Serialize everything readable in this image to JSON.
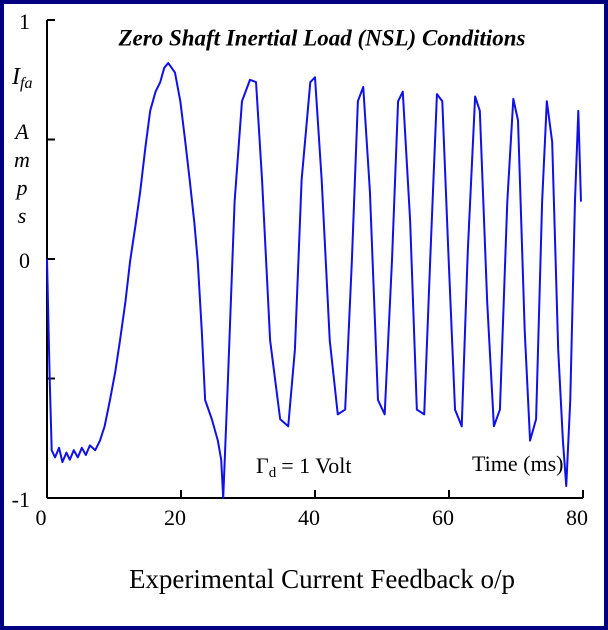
{
  "chart_data": {
    "type": "line",
    "title": "Zero Shaft Inertial Load (NSL) Conditions",
    "y_label": {
      "symbol": "I",
      "subscript": "fa",
      "unit": "Amps"
    },
    "x_label": "Time (ms)",
    "annotation": {
      "symbol": "Γ",
      "subscript": "d",
      "text": "= 1 Volt"
    },
    "caption": "Experimental Current Feedback o/p",
    "xlim": [
      0,
      80
    ],
    "xticks": [
      0,
      20,
      40,
      60,
      80
    ],
    "ylim": [
      -1,
      1
    ],
    "yticks": [
      -1,
      0,
      1
    ],
    "yminorticks": [
      -0.5,
      0.5
    ],
    "series": [
      {
        "color": "#1010e8",
        "x": [
          0,
          0.4,
          0.7,
          1.2,
          1.8,
          2.3,
          2.9,
          3.4,
          4,
          4.6,
          5.2,
          5.8,
          6.4,
          7.2,
          7.9,
          8.6,
          9.4,
          10.2,
          10.9,
          11.7,
          12.4,
          13.2,
          13.9,
          14.7,
          15.4,
          16.2,
          16.9,
          17.5,
          18.1,
          18.6,
          19.1,
          19.9,
          20.6,
          21.3,
          22,
          22.5,
          23.1,
          23.6,
          24.6,
          25.5,
          26,
          26.3,
          27,
          28,
          29.1,
          30.3,
          31.2,
          32.1,
          33.3,
          34.8,
          36,
          37,
          38,
          39.3,
          40,
          41,
          42.2,
          43.4,
          44.5,
          45.5,
          46.4,
          47.2,
          48.2,
          49.4,
          50.4,
          51.5,
          52.4,
          53.1,
          54.2,
          55.2,
          56.3,
          57.2,
          58.2,
          59,
          59.9,
          60.9,
          61.9,
          62.8,
          63.9,
          64.6,
          65.7,
          66.7,
          67.6,
          68.7,
          69.6,
          70.3,
          71.3,
          72.1,
          73,
          73.9,
          74.6,
          75.4,
          76.3,
          77,
          77.5,
          78.1,
          78.8,
          79.3,
          79.7
        ],
        "values": [
          0,
          -0.5,
          -0.8,
          -0.83,
          -0.79,
          -0.85,
          -0.81,
          -0.84,
          -0.8,
          -0.83,
          -0.79,
          -0.82,
          -0.78,
          -0.8,
          -0.76,
          -0.7,
          -0.59,
          -0.47,
          -0.34,
          -0.18,
          -0.01,
          0.14,
          0.28,
          0.47,
          0.62,
          0.7,
          0.74,
          0.8,
          0.82,
          0.8,
          0.78,
          0.66,
          0.5,
          0.33,
          0.15,
          -0.01,
          -0.3,
          -0.59,
          -0.67,
          -0.76,
          -0.84,
          -1,
          -0.51,
          0.24,
          0.66,
          0.75,
          0.74,
          0.33,
          -0.34,
          -0.67,
          -0.7,
          -0.38,
          0.33,
          0.74,
          0.76,
          0.33,
          -0.34,
          -0.65,
          -0.63,
          -0.01,
          0.66,
          0.72,
          0.28,
          -0.59,
          -0.65,
          0,
          0.66,
          0.7,
          0.16,
          -0.63,
          -0.65,
          0,
          0.69,
          0.66,
          0.03,
          -0.63,
          -0.7,
          0.03,
          0.68,
          0.62,
          -0.18,
          -0.7,
          -0.63,
          0.24,
          0.67,
          0.58,
          -0.3,
          -0.76,
          -0.67,
          0.24,
          0.66,
          0.49,
          -0.38,
          -0.76,
          -0.95,
          -0.59,
          0.24,
          0.62,
          0.24
        ]
      }
    ]
  }
}
